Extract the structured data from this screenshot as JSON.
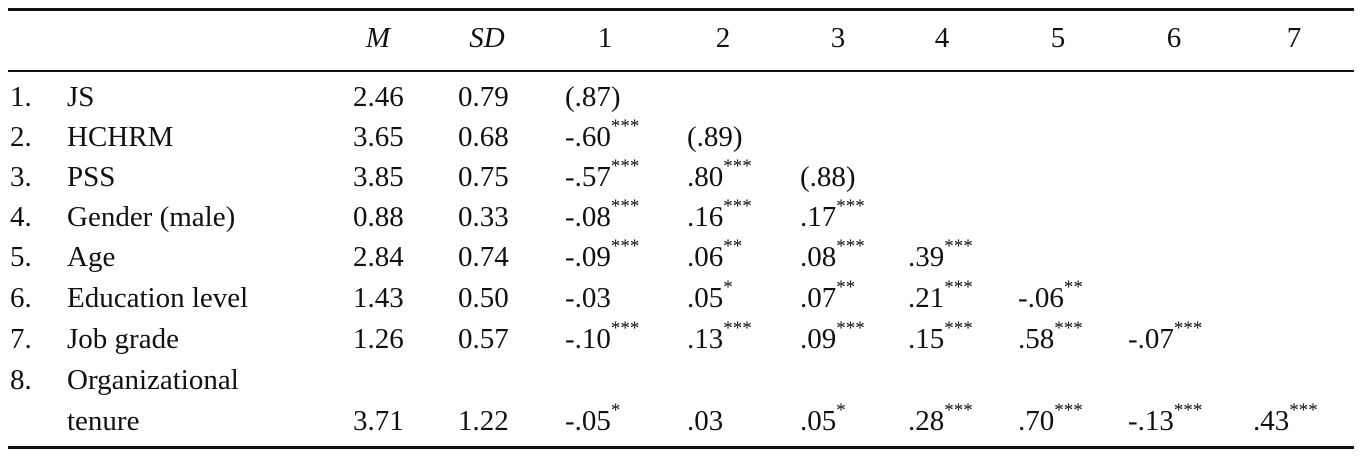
{
  "table": {
    "headers": [
      "M",
      "SD",
      "1",
      "2",
      "3",
      "4",
      "5",
      "6",
      "7"
    ],
    "rows": [
      {
        "num": "1.",
        "label": [
          "JS"
        ],
        "m": "2.46",
        "sd": "0.79",
        "cells": [
          {
            "v": "(.87)",
            "s": ""
          }
        ]
      },
      {
        "num": "2.",
        "label": [
          "HCHRM"
        ],
        "m": "3.65",
        "sd": "0.68",
        "cells": [
          {
            "v": "-.60",
            "s": "***"
          },
          {
            "v": "(.89)",
            "s": ""
          }
        ]
      },
      {
        "num": "3.",
        "label": [
          "PSS"
        ],
        "m": "3.85",
        "sd": "0.75",
        "cells": [
          {
            "v": "-.57",
            "s": "***"
          },
          {
            "v": ".80",
            "s": "***"
          },
          {
            "v": "(.88)",
            "s": ""
          }
        ]
      },
      {
        "num": "4.",
        "label": [
          "Gender (male)"
        ],
        "m": "0.88",
        "sd": "0.33",
        "cells": [
          {
            "v": "-.08",
            "s": "***"
          },
          {
            "v": ".16",
            "s": "***"
          },
          {
            "v": ".17",
            "s": "***"
          }
        ]
      },
      {
        "num": "5.",
        "label": [
          "Age"
        ],
        "m": "2.84",
        "sd": "0.74",
        "cells": [
          {
            "v": "-.09",
            "s": "***"
          },
          {
            "v": ".06",
            "s": "**"
          },
          {
            "v": ".08",
            "s": "***"
          },
          {
            "v": ".39",
            "s": "***"
          }
        ]
      },
      {
        "num": "6.",
        "label": [
          "Education level"
        ],
        "m": "1.43",
        "sd": "0.50",
        "cells": [
          {
            "v": "-.03",
            "s": ""
          },
          {
            "v": ".05",
            "s": "*"
          },
          {
            "v": ".07",
            "s": "**"
          },
          {
            "v": ".21",
            "s": "***"
          },
          {
            "v": "-.06",
            "s": "**"
          }
        ]
      },
      {
        "num": "7.",
        "label": [
          "Job grade"
        ],
        "m": "1.26",
        "sd": "0.57",
        "cells": [
          {
            "v": "-.10",
            "s": "***"
          },
          {
            "v": ".13",
            "s": "***"
          },
          {
            "v": ".09",
            "s": "***"
          },
          {
            "v": ".15",
            "s": "***"
          },
          {
            "v": ".58",
            "s": "***"
          },
          {
            "v": "-.07",
            "s": "***"
          }
        ]
      },
      {
        "num": "8.",
        "label": [
          "Organizational",
          "tenure"
        ],
        "m": "3.71",
        "sd": "1.22",
        "cells": [
          {
            "v": "-.05",
            "s": "*"
          },
          {
            "v": ".03",
            "s": ""
          },
          {
            "v": ".05",
            "s": "*"
          },
          {
            "v": ".28",
            "s": "***"
          },
          {
            "v": ".70",
            "s": "***"
          },
          {
            "v": "-.13",
            "s": "***"
          },
          {
            "v": ".43",
            "s": "***"
          }
        ]
      }
    ]
  }
}
